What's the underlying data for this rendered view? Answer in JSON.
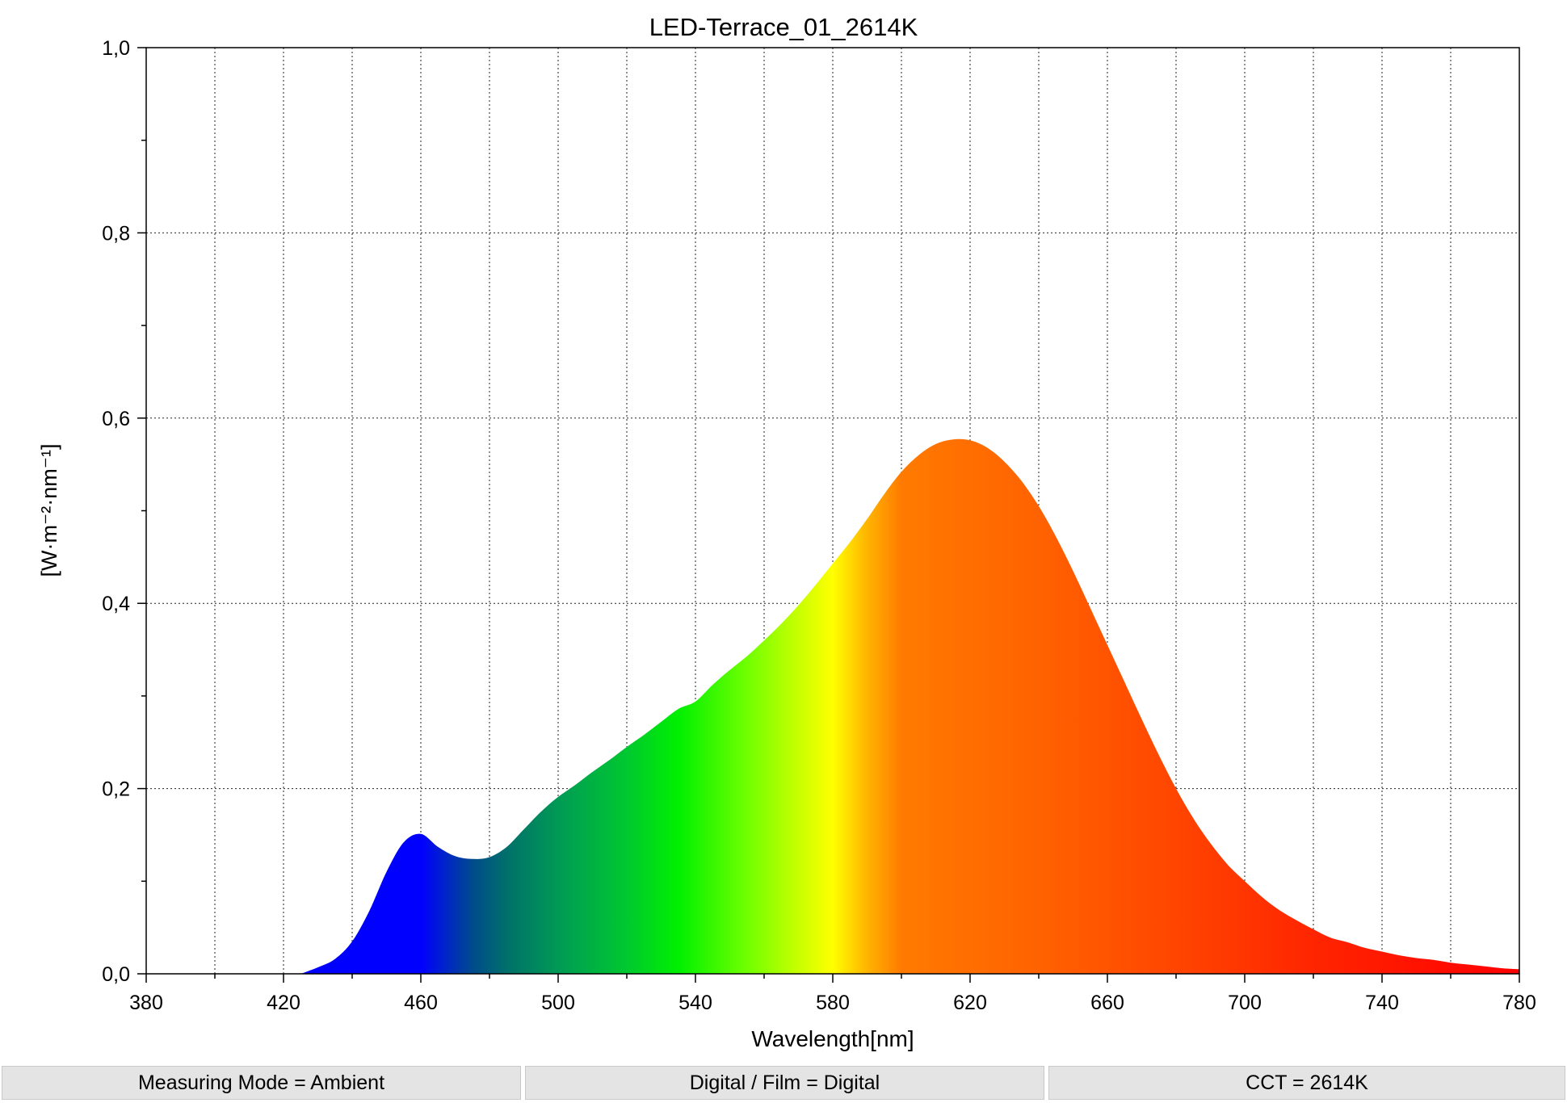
{
  "chart_data": {
    "type": "area",
    "title": "LED-Terrace_01_2614K",
    "xlabel": "Wavelength[nm]",
    "ylabel": "[W·m⁻²·nm⁻¹]",
    "xlim": [
      380,
      780
    ],
    "ylim": [
      0,
      1.0
    ],
    "x_ticks": [
      380,
      420,
      460,
      500,
      540,
      580,
      620,
      660,
      700,
      740,
      780
    ],
    "x_tick_labels": [
      "380",
      "420",
      "460",
      "500",
      "540",
      "580",
      "620",
      "660",
      "700",
      "740",
      "780"
    ],
    "y_ticks": [
      0,
      0.2,
      0.4,
      0.6,
      0.8,
      1.0
    ],
    "y_tick_labels": [
      "0,0",
      "0,2",
      "0,4",
      "0,6",
      "0,8",
      "1,0"
    ],
    "grid": true,
    "fill": "visible-spectrum gradient",
    "series": [
      {
        "x": [
          425,
          430,
          435,
          440,
          445,
          450,
          455,
          460,
          465,
          470,
          475,
          480,
          485,
          490,
          495,
          500,
          505,
          510,
          515,
          520,
          525,
          530,
          535,
          540,
          545,
          550,
          555,
          560,
          565,
          570,
          575,
          580,
          585,
          590,
          595,
          600,
          605,
          610,
          615,
          620,
          625,
          630,
          635,
          640,
          645,
          650,
          655,
          660,
          665,
          670,
          675,
          680,
          685,
          690,
          695,
          700,
          705,
          710,
          715,
          720,
          725,
          730,
          735,
          740,
          745,
          750,
          755,
          760,
          765,
          770,
          775,
          780
        ],
        "values": [
          0.0,
          0.007,
          0.016,
          0.035,
          0.068,
          0.11,
          0.142,
          0.151,
          0.137,
          0.127,
          0.124,
          0.126,
          0.137,
          0.156,
          0.175,
          0.191,
          0.204,
          0.218,
          0.231,
          0.245,
          0.258,
          0.272,
          0.286,
          0.294,
          0.312,
          0.328,
          0.343,
          0.36,
          0.378,
          0.398,
          0.42,
          0.443,
          0.466,
          0.491,
          0.518,
          0.542,
          0.56,
          0.572,
          0.577,
          0.576,
          0.568,
          0.553,
          0.532,
          0.505,
          0.472,
          0.435,
          0.395,
          0.355,
          0.315,
          0.275,
          0.236,
          0.2,
          0.168,
          0.141,
          0.118,
          0.1,
          0.083,
          0.069,
          0.058,
          0.048,
          0.039,
          0.034,
          0.028,
          0.024,
          0.02,
          0.017,
          0.015,
          0.012,
          0.01,
          0.008,
          0.006,
          0.005
        ]
      }
    ]
  },
  "status": {
    "measuring_mode": "Measuring Mode = Ambient",
    "digital_film": "Digital / Film = Digital",
    "cct": "CCT = 2614K"
  },
  "colors": {
    "gradient_stops": [
      {
        "wl": 380,
        "color": "#0000ff"
      },
      {
        "wl": 460,
        "color": "#0000ff"
      },
      {
        "wl": 475,
        "color": "#004b8c"
      },
      {
        "wl": 485,
        "color": "#00706a"
      },
      {
        "wl": 500,
        "color": "#009a55"
      },
      {
        "wl": 520,
        "color": "#00c830"
      },
      {
        "wl": 535,
        "color": "#00f000"
      },
      {
        "wl": 555,
        "color": "#70ff00"
      },
      {
        "wl": 570,
        "color": "#c8ff00"
      },
      {
        "wl": 580,
        "color": "#ffff00"
      },
      {
        "wl": 590,
        "color": "#ffb400"
      },
      {
        "wl": 600,
        "color": "#ff7a00"
      },
      {
        "wl": 640,
        "color": "#ff6200"
      },
      {
        "wl": 680,
        "color": "#ff4500"
      },
      {
        "wl": 720,
        "color": "#ff2500"
      },
      {
        "wl": 780,
        "color": "#ff0000"
      }
    ]
  }
}
